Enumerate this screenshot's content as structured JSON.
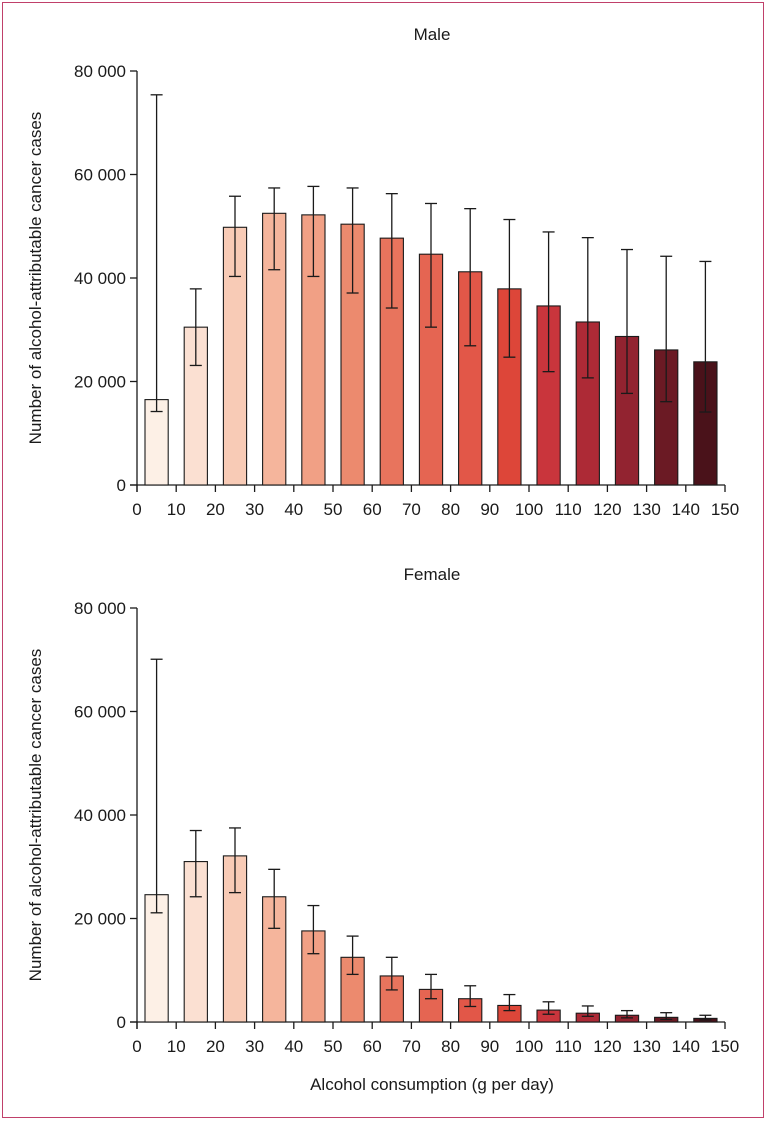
{
  "chart_data": [
    {
      "type": "bar",
      "title": "Male",
      "ylabel": "Number of alcohol-attributable cancer cases",
      "xlabel": "",
      "xlim": [
        0,
        150
      ],
      "ylim": [
        0,
        80000
      ],
      "xticks": [
        "0",
        "10",
        "20",
        "30",
        "40",
        "50",
        "60",
        "70",
        "80",
        "90",
        "100",
        "110",
        "120",
        "130",
        "140",
        "150"
      ],
      "yticks": [
        "0",
        "20 000",
        "40 000",
        "60 000",
        "80 000"
      ],
      "grid": false,
      "bins": [
        [
          0,
          10
        ],
        [
          10,
          20
        ],
        [
          20,
          30
        ],
        [
          30,
          40
        ],
        [
          40,
          50
        ],
        [
          50,
          60
        ],
        [
          60,
          70
        ],
        [
          70,
          80
        ],
        [
          80,
          90
        ],
        [
          90,
          100
        ],
        [
          100,
          110
        ],
        [
          110,
          120
        ],
        [
          120,
          130
        ],
        [
          130,
          140
        ],
        [
          140,
          150
        ]
      ],
      "values": [
        16500,
        30500,
        49800,
        52500,
        52200,
        50400,
        47700,
        44600,
        41200,
        37900,
        34600,
        31500,
        28700,
        26100,
        23800
      ],
      "error_low": [
        14200,
        23100,
        40300,
        41600,
        40300,
        37100,
        34200,
        30500,
        26900,
        24700,
        21900,
        20700,
        17700,
        16100,
        14100
      ],
      "error_high": [
        75400,
        37900,
        55800,
        57400,
        57700,
        57400,
        56300,
        54400,
        53400,
        51300,
        48900,
        47800,
        45500,
        44200,
        43200
      ]
    },
    {
      "type": "bar",
      "title": "Female",
      "ylabel": "Number of alcohol-attributable cancer cases",
      "xlabel": "Alcohol consumption (g per day)",
      "xlim": [
        0,
        150
      ],
      "ylim": [
        0,
        80000
      ],
      "xticks": [
        "0",
        "10",
        "20",
        "30",
        "40",
        "50",
        "60",
        "70",
        "80",
        "90",
        "100",
        "110",
        "120",
        "130",
        "140",
        "150"
      ],
      "yticks": [
        "0",
        "20 000",
        "40 000",
        "60 000",
        "80 000"
      ],
      "grid": false,
      "bins": [
        [
          0,
          10
        ],
        [
          10,
          20
        ],
        [
          20,
          30
        ],
        [
          30,
          40
        ],
        [
          40,
          50
        ],
        [
          50,
          60
        ],
        [
          60,
          70
        ],
        [
          70,
          80
        ],
        [
          80,
          90
        ],
        [
          90,
          100
        ],
        [
          100,
          110
        ],
        [
          110,
          120
        ],
        [
          120,
          130
        ],
        [
          130,
          140
        ],
        [
          140,
          150
        ]
      ],
      "values": [
        24600,
        31000,
        32100,
        24200,
        17600,
        12500,
        8900,
        6300,
        4500,
        3200,
        2300,
        1700,
        1300,
        900,
        700
      ],
      "error_low": [
        21100,
        24200,
        25000,
        18100,
        13200,
        9200,
        6200,
        4500,
        3000,
        2200,
        1500,
        1100,
        800,
        500,
        400
      ],
      "error_high": [
        70100,
        37000,
        37500,
        29500,
        22500,
        16600,
        12500,
        9200,
        7000,
        5300,
        3900,
        3100,
        2200,
        1800,
        1300
      ]
    }
  ],
  "colors": {
    "frame": "#c0406a",
    "bars": [
      "#fdf0e6",
      "#fbe0d2",
      "#f8cbb6",
      "#f5b59c",
      "#f1a085",
      "#ec8a6e",
      "#e8745d",
      "#e56552",
      "#e25748",
      "#dd4639",
      "#c9353c",
      "#ad2a36",
      "#922330",
      "#6b1a24",
      "#4a121a"
    ],
    "bar_stroke": "#1a1a1a"
  }
}
